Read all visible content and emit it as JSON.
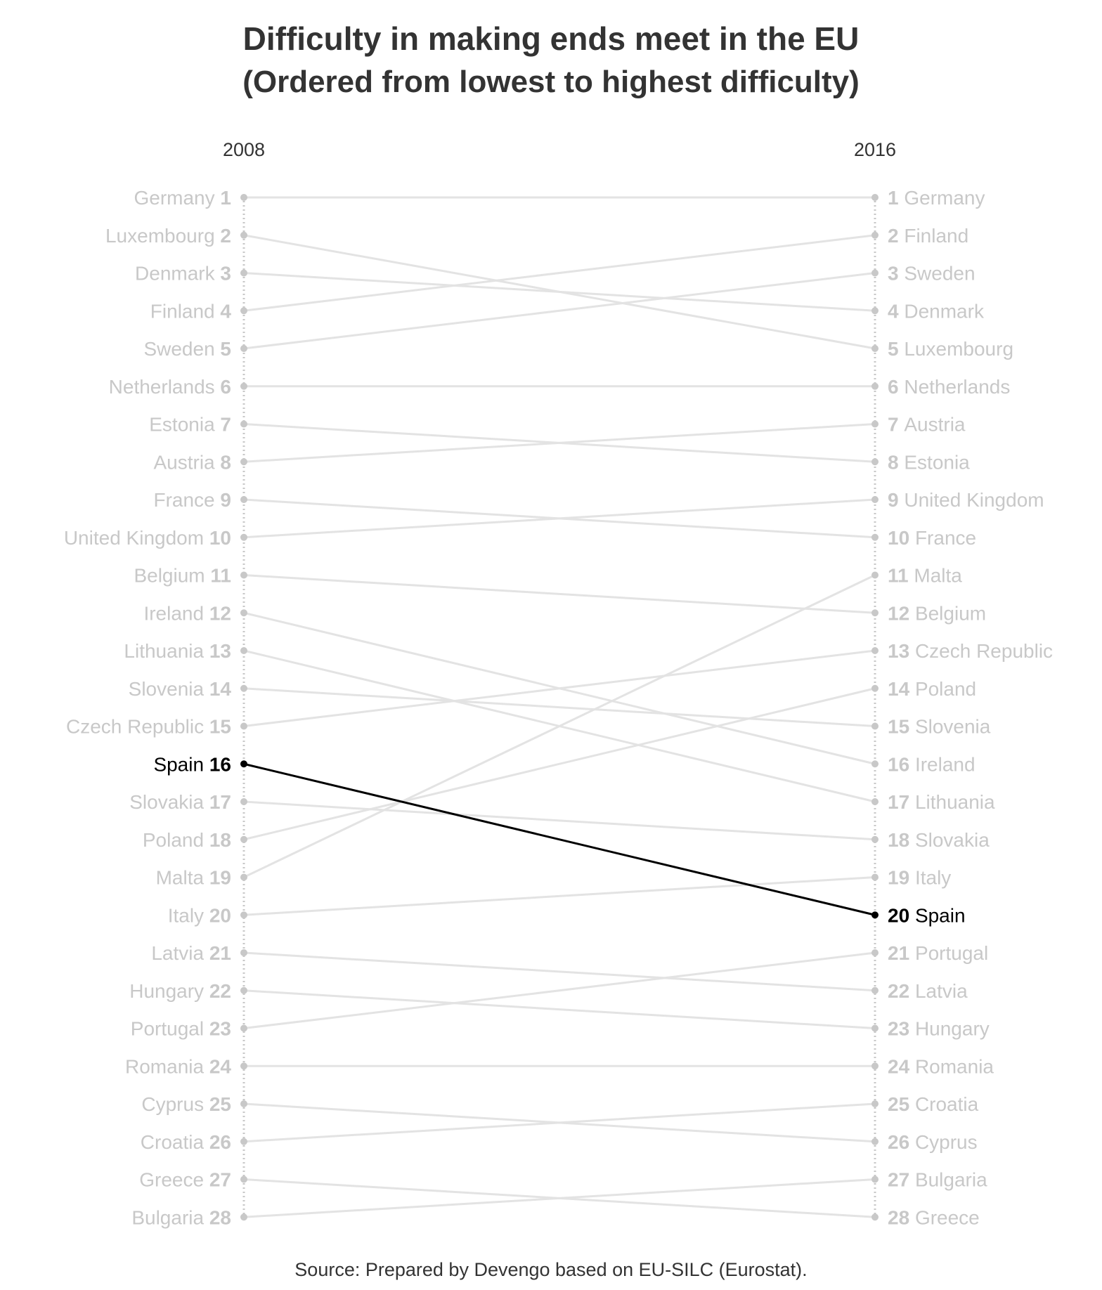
{
  "title": "Difficulty in making ends meet in the EU",
  "subtitle": "(Ordered from lowest to highest difficulty)",
  "source": "Source: Prepared by Devengo based on EU-SILC (Eurostat).",
  "colors": {
    "muted": "#c8c8c8",
    "line": "#e3e3e3",
    "highlight": "#000000",
    "text": "#333333"
  },
  "chart_data": {
    "type": "slope",
    "x": [
      "2008",
      "2016"
    ],
    "highlight": "Spain",
    "series": [
      {
        "name": "Germany",
        "values": [
          1,
          1
        ]
      },
      {
        "name": "Luxembourg",
        "values": [
          2,
          5
        ]
      },
      {
        "name": "Denmark",
        "values": [
          3,
          4
        ]
      },
      {
        "name": "Finland",
        "values": [
          4,
          2
        ]
      },
      {
        "name": "Sweden",
        "values": [
          5,
          3
        ]
      },
      {
        "name": "Netherlands",
        "values": [
          6,
          6
        ]
      },
      {
        "name": "Estonia",
        "values": [
          7,
          8
        ]
      },
      {
        "name": "Austria",
        "values": [
          8,
          7
        ]
      },
      {
        "name": "France",
        "values": [
          9,
          10
        ]
      },
      {
        "name": "United Kingdom",
        "values": [
          10,
          9
        ]
      },
      {
        "name": "Belgium",
        "values": [
          11,
          12
        ]
      },
      {
        "name": "Ireland",
        "values": [
          12,
          16
        ]
      },
      {
        "name": "Lithuania",
        "values": [
          13,
          17
        ]
      },
      {
        "name": "Slovenia",
        "values": [
          14,
          15
        ]
      },
      {
        "name": "Czech Republic",
        "values": [
          15,
          13
        ]
      },
      {
        "name": "Spain",
        "values": [
          16,
          20
        ]
      },
      {
        "name": "Slovakia",
        "values": [
          17,
          18
        ]
      },
      {
        "name": "Poland",
        "values": [
          18,
          14
        ]
      },
      {
        "name": "Malta",
        "values": [
          19,
          11
        ]
      },
      {
        "name": "Italy",
        "values": [
          20,
          19
        ]
      },
      {
        "name": "Latvia",
        "values": [
          21,
          22
        ]
      },
      {
        "name": "Hungary",
        "values": [
          22,
          23
        ]
      },
      {
        "name": "Portugal",
        "values": [
          23,
          21
        ]
      },
      {
        "name": "Romania",
        "values": [
          24,
          24
        ]
      },
      {
        "name": "Cyprus",
        "values": [
          25,
          26
        ]
      },
      {
        "name": "Croatia",
        "values": [
          26,
          25
        ]
      },
      {
        "name": "Greece",
        "values": [
          27,
          28
        ]
      },
      {
        "name": "Bulgaria",
        "values": [
          28,
          27
        ]
      }
    ]
  }
}
